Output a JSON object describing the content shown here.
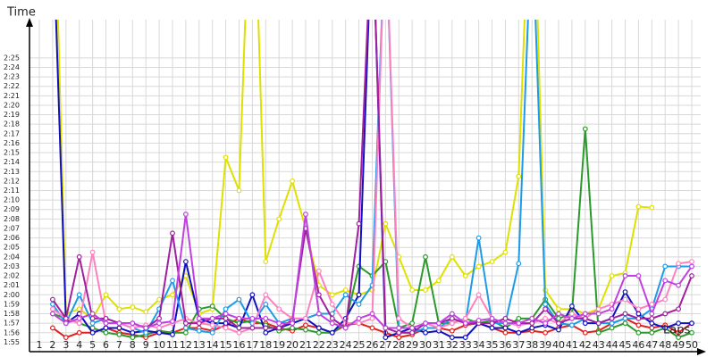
{
  "chart_data": {
    "type": "line",
    "title": "Time",
    "x_label": "Laps",
    "x": [
      1,
      2,
      3,
      4,
      5,
      6,
      7,
      8,
      9,
      10,
      11,
      12,
      13,
      14,
      15,
      16,
      17,
      18,
      19,
      20,
      21,
      22,
      23,
      24,
      25,
      26,
      27,
      28,
      29,
      30,
      31,
      32,
      33,
      34,
      35,
      36,
      37,
      38,
      39,
      40,
      41,
      42,
      43,
      44,
      45,
      46,
      47,
      48,
      49,
      50
    ],
    "xticks": [
      1,
      2,
      3,
      4,
      5,
      6,
      7,
      8,
      9,
      10,
      11,
      12,
      13,
      14,
      15,
      16,
      17,
      18,
      19,
      20,
      21,
      22,
      23,
      24,
      25,
      26,
      27,
      28,
      29,
      30,
      31,
      32,
      33,
      34,
      35,
      36,
      37,
      38,
      39,
      40,
      41,
      42,
      43,
      44,
      45,
      46,
      47,
      48,
      49,
      50
    ],
    "xlim": [
      0.26,
      50
    ],
    "ylim": [
      114,
      148
    ],
    "yticks": [
      {
        "value": 115,
        "label": "1:55"
      },
      {
        "value": 116,
        "label": "1:56"
      },
      {
        "value": 117,
        "label": "1:57"
      },
      {
        "value": 118,
        "label": "1:58"
      },
      {
        "value": 119,
        "label": "1:59"
      },
      {
        "value": 120,
        "label": "2:00"
      },
      {
        "value": 121,
        "label": "2:01"
      },
      {
        "value": 122,
        "label": "2:02"
      },
      {
        "value": 123,
        "label": "2:03"
      },
      {
        "value": 124,
        "label": "2:04"
      },
      {
        "value": 125,
        "label": "2:05"
      },
      {
        "value": 126,
        "label": "2:06"
      },
      {
        "value": 127,
        "label": "2:07"
      },
      {
        "value": 128,
        "label": "2:08"
      },
      {
        "value": 129,
        "label": "2:09"
      },
      {
        "value": 130,
        "label": "2:10"
      },
      {
        "value": 131,
        "label": "2:11"
      },
      {
        "value": 132,
        "label": "2:12"
      },
      {
        "value": 133,
        "label": "2:13"
      },
      {
        "value": 134,
        "label": "2:14"
      },
      {
        "value": 135,
        "label": "2:15"
      },
      {
        "value": 136,
        "label": "2:16"
      },
      {
        "value": 137,
        "label": "2:17"
      },
      {
        "value": 138,
        "label": "2:18"
      },
      {
        "value": 139,
        "label": "2:19"
      },
      {
        "value": 140,
        "label": "2:20"
      },
      {
        "value": 141,
        "label": "2:21"
      },
      {
        "value": 142,
        "label": "2:22"
      },
      {
        "value": 143,
        "label": "2:23"
      },
      {
        "value": 144,
        "label": "2:24"
      },
      {
        "value": 145,
        "label": "2:25"
      }
    ],
    "grid": true,
    "series": [
      {
        "color": "#e0e000",
        "values": [
          null,
          170,
          118,
          118.5,
          117.5,
          120,
          118.5,
          118.7,
          118.2,
          119.5,
          120,
          122,
          118,
          118.5,
          134.5,
          131,
          170,
          123.5,
          128,
          132,
          127,
          121,
          120,
          120.5,
          120,
          120.5,
          127.5,
          124,
          120.5,
          120.5,
          121.5,
          124,
          122,
          123,
          123.5,
          124.5,
          132.5,
          170,
          120.5,
          118.5,
          118.5,
          118,
          118.5,
          122,
          122.3,
          129.3,
          129.2,
          null,
          null,
          null
        ]
      },
      {
        "color": "#e02020",
        "values": [
          null,
          116.5,
          115.5,
          116,
          116,
          116.5,
          116,
          115.8,
          115.5,
          116,
          116,
          116.5,
          116.5,
          116.2,
          116.8,
          117.5,
          117,
          117,
          116.5,
          116.2,
          116.8,
          116.5,
          116,
          116.8,
          117,
          116.5,
          116,
          115.5,
          115.8,
          116.5,
          116.5,
          116.2,
          116.8,
          117,
          116.5,
          116,
          116,
          116.2,
          116,
          116.5,
          116.8,
          116,
          116.2,
          117,
          117.5,
          116.8,
          116.5,
          116.8,
          116,
          117
        ]
      },
      {
        "color": "#2a9a2a",
        "values": [
          null,
          118,
          117.5,
          117,
          116.5,
          116,
          115.8,
          115.5,
          115.8,
          116.2,
          116,
          116,
          118.5,
          118.8,
          117.5,
          117,
          117.3,
          116.8,
          116.2,
          116.5,
          116.3,
          116,
          116,
          117,
          123,
          122,
          123.5,
          116.5,
          117,
          124,
          117,
          117,
          117.5,
          117,
          117.3,
          116.5,
          117.5,
          117.5,
          119.5,
          117.5,
          118,
          137.5,
          116,
          116.5,
          117,
          116,
          116,
          116.5,
          115.5,
          116
        ]
      },
      {
        "color": "#1010c0",
        "values": [
          null,
          160,
          117,
          118,
          116,
          116.5,
          116.5,
          116,
          116.2,
          116,
          115.8,
          123.5,
          117.5,
          117,
          117,
          116.5,
          120,
          116,
          116.5,
          117,
          117.5,
          116.5,
          116,
          117.5,
          120,
          160,
          115.5,
          116,
          116.5,
          116,
          116.2,
          115.5,
          115.5,
          117,
          116.5,
          116.5,
          116,
          116.5,
          116.8,
          116.3,
          118.8,
          117,
          117,
          117.5,
          120.3,
          118,
          117,
          116.5,
          117,
          117
        ]
      },
      {
        "color": "#1e9be8",
        "values": [
          null,
          119,
          117,
          120,
          117,
          117.5,
          117,
          116.5,
          116,
          118.5,
          121.5,
          116.5,
          116.2,
          116,
          118.5,
          119.5,
          117,
          119,
          117,
          117.5,
          117.5,
          118,
          118,
          120,
          119,
          121,
          160,
          116,
          116,
          116.5,
          116.5,
          117.5,
          117,
          126,
          117,
          117,
          123.3,
          160,
          119,
          117,
          116.8,
          117.5,
          117,
          117,
          117.5,
          117.5,
          118.5,
          123,
          123,
          123
        ]
      },
      {
        "color": "#ff80c0",
        "values": [
          null,
          118.5,
          117.5,
          117,
          124.5,
          117,
          117,
          116.5,
          116.8,
          116.5,
          117,
          117.5,
          117,
          116.8,
          116.5,
          116,
          116.5,
          120,
          118.5,
          117.5,
          117.5,
          122.5,
          119,
          117,
          117,
          117.5,
          160,
          117.5,
          116.5,
          117,
          116.5,
          117,
          117.5,
          120,
          117.5,
          117,
          116.8,
          117,
          117.5,
          117,
          118,
          117.5,
          118.5,
          119,
          119.5,
          118.5,
          119,
          119.5,
          123.3,
          123.5
        ]
      },
      {
        "color": "#a020a0",
        "values": [
          null,
          119.5,
          117.5,
          124,
          117.5,
          117.5,
          117,
          117,
          116.5,
          117.5,
          126.5,
          117,
          117,
          117.5,
          117.5,
          116.5,
          116.5,
          116.5,
          116.5,
          117.3,
          127,
          120,
          117.5,
          116.5,
          127.5,
          160,
          116.5,
          116,
          116,
          117,
          117,
          117.5,
          117,
          117,
          117,
          117.5,
          117,
          117,
          118.5,
          117,
          117.5,
          117.5,
          117,
          117.5,
          118,
          117.5,
          117.5,
          118,
          118.5,
          122
        ]
      },
      {
        "color": "#c040e0",
        "values": [
          null,
          118,
          117,
          117.5,
          118,
          117,
          117,
          117,
          116.5,
          117,
          117.2,
          128.5,
          117.5,
          117.5,
          118,
          117.5,
          117.5,
          117.5,
          117,
          117,
          128.5,
          118,
          117,
          116.5,
          117.5,
          118,
          116.5,
          116.5,
          116.5,
          117,
          117,
          118,
          117,
          117.3,
          117.5,
          117,
          117,
          117.5,
          117,
          118,
          117.5,
          118,
          118,
          118.5,
          122,
          122,
          118,
          121.5,
          121,
          123
        ]
      }
    ]
  }
}
